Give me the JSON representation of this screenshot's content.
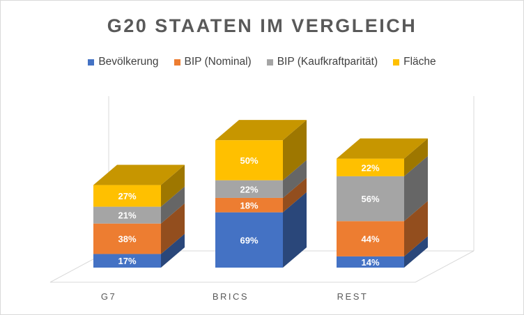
{
  "chart_data": {
    "type": "bar",
    "stacked": true,
    "three_d": true,
    "title": "G20 STAATEN IM VERGLEICH",
    "categories": [
      "G7",
      "BRICS",
      "REST"
    ],
    "series": [
      {
        "name": "Bevölkerung",
        "color": "#4472C4",
        "values": [
          17,
          69,
          14
        ],
        "labels": [
          "17%",
          "69%",
          "14%"
        ]
      },
      {
        "name": "BIP (Nominal)",
        "color": "#ED7D31",
        "values": [
          38,
          18,
          44
        ],
        "labels": [
          "38%",
          "18%",
          "44%"
        ]
      },
      {
        "name": "BIP (Kaufkraftparität)",
        "color": "#A5A5A5",
        "values": [
          21,
          22,
          56
        ],
        "labels": [
          "21%",
          "22%",
          "56%"
        ]
      },
      {
        "name": "Fläche",
        "color": "#FFC000",
        "values": [
          27,
          50,
          22
        ],
        "labels": [
          "27%",
          "50%",
          "22%"
        ]
      }
    ],
    "legend_position": "top",
    "grid": false
  }
}
